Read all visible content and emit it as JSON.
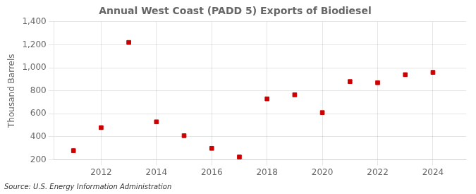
{
  "chart_data": {
    "type": "scatter",
    "title": "Annual West Coast (PADD 5) Exports of Biodiesel",
    "ylabel": "Thousand Barrels",
    "annotation": "Source: U.S. Energy Information Administration",
    "x": [
      2011,
      2012,
      2013,
      2014,
      2015,
      2016,
      2017,
      2018,
      2019,
      2020,
      2021,
      2022,
      2023,
      2024
    ],
    "values": [
      280,
      480,
      1220,
      530,
      410,
      300,
      225,
      730,
      765,
      610,
      880,
      870,
      940,
      960
    ],
    "color": "#cc0000",
    "marker": "square",
    "xlim": [
      2010.3,
      2025.2
    ],
    "xticks": [
      2012,
      2014,
      2016,
      2018,
      2020,
      2022,
      2024
    ],
    "ylim": [
      200,
      1400
    ],
    "yticks": [
      200,
      400,
      600,
      800,
      {
        "value": 1000,
        "label": "1,000"
      },
      {
        "value": 1200,
        "label": "1,200"
      },
      {
        "value": 1400,
        "label": "1,400"
      }
    ],
    "grid": true
  }
}
